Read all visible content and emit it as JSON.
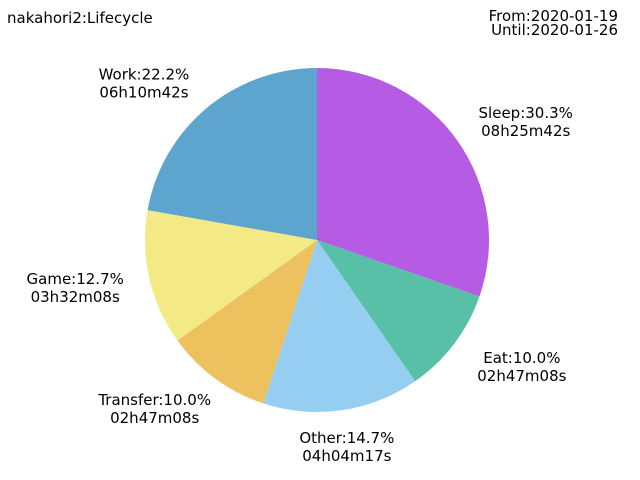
{
  "header": {
    "title": "nakahori2:Lifecycle",
    "from": "From:2020-01-19",
    "until": "Until:2020-01-26"
  },
  "chart_data": {
    "type": "pie",
    "title": "nakahori2:Lifecycle",
    "start_angle_deg": 90,
    "direction": "clockwise",
    "slices": [
      {
        "name": "Sleep",
        "percent": 30.3,
        "percent_label": "Sleep:30.3%",
        "duration": "08h25m42s",
        "color": "#b65be3"
      },
      {
        "name": "Eat",
        "percent": 10.0,
        "percent_label": "Eat:10.0%",
        "duration": "02h47m08s",
        "color": "#57c0a7"
      },
      {
        "name": "Other",
        "percent": 14.7,
        "percent_label": "Other:14.7%",
        "duration": "04h04m17s",
        "color": "#95cef0"
      },
      {
        "name": "Transfer",
        "percent": 10.0,
        "percent_label": "Transfer:10.0%",
        "duration": "02h47m08s",
        "color": "#edc25e"
      },
      {
        "name": "Game",
        "percent": 12.7,
        "percent_label": "Game:12.7%",
        "duration": "03h32m08s",
        "color": "#f4ea85"
      },
      {
        "name": "Work",
        "percent": 22.2,
        "percent_label": "Work:22.2%",
        "duration": "06h10m42s",
        "color": "#5da5cf"
      }
    ]
  }
}
